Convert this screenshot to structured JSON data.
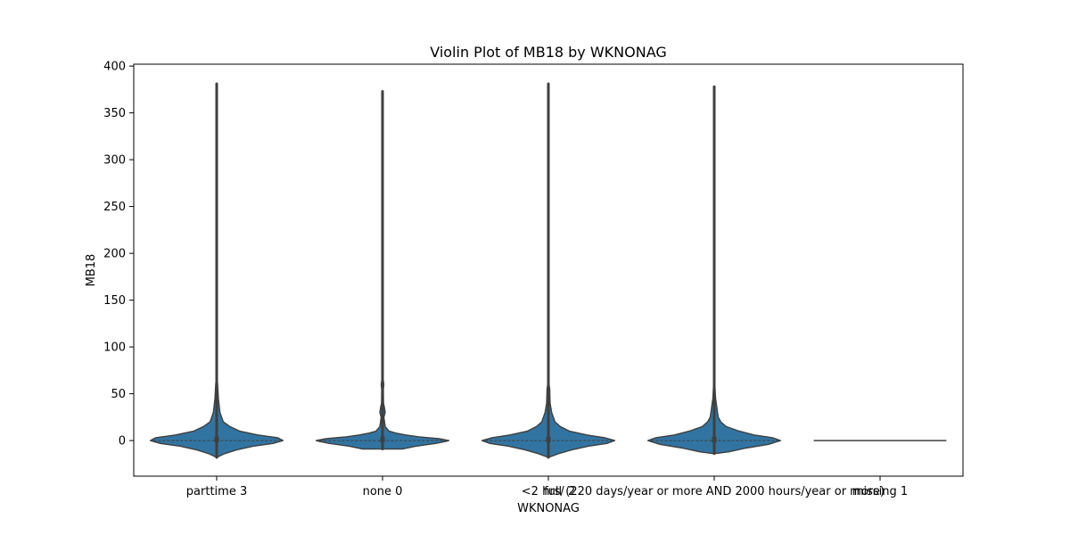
{
  "chart_data": {
    "type": "violin",
    "title": "Violin Plot of MB18 by WKNONAG",
    "xlabel": "WKNONAG",
    "ylabel": "MB18",
    "categories": [
      "parttime 3",
      "none 0",
      "<2 hrs/ 2",
      "full (220 days/year or more AND 2000 hours/year or more)",
      "missing 1"
    ],
    "ylim": [
      -38,
      402
    ],
    "yticks": [
      0,
      50,
      100,
      150,
      200,
      250,
      300,
      350,
      400
    ],
    "grid": false,
    "legend": "none",
    "colors": {
      "fill": "#3274a1",
      "edge": "#3f3f3f",
      "axis": "#000000"
    },
    "violins": [
      {
        "category": "parttime 3",
        "max": 381,
        "min": -18,
        "median": 0,
        "profile": [
          [
            -18,
            0
          ],
          [
            -14,
            0.12
          ],
          [
            -10,
            0.3
          ],
          [
            -6,
            0.55
          ],
          [
            -3,
            0.85
          ],
          [
            0,
            1.0
          ],
          [
            3,
            0.92
          ],
          [
            6,
            0.62
          ],
          [
            10,
            0.35
          ],
          [
            15,
            0.2
          ],
          [
            20,
            0.1
          ],
          [
            30,
            0.05
          ],
          [
            45,
            0.025
          ],
          [
            60,
            0.015
          ],
          [
            70,
            0
          ]
        ]
      },
      {
        "category": "none 0",
        "max": 373,
        "min": -9,
        "median": 0,
        "profile": [
          [
            -9,
            0.3
          ],
          [
            -6,
            0.5
          ],
          [
            -3,
            0.8
          ],
          [
            -1,
            0.95
          ],
          [
            0,
            1.0
          ],
          [
            2,
            0.85
          ],
          [
            4,
            0.55
          ],
          [
            6,
            0.35
          ],
          [
            8,
            0.2
          ],
          [
            10,
            0.1
          ],
          [
            15,
            0.04
          ],
          [
            25,
            0.02
          ],
          [
            30,
            0.04
          ],
          [
            35,
            0.03
          ],
          [
            40,
            0.015
          ],
          [
            55,
            0.012
          ],
          [
            60,
            0.02
          ],
          [
            65,
            0.01
          ],
          [
            90,
            0.005
          ]
        ]
      },
      {
        "category": "<2 hrs/ 2",
        "max": 381,
        "min": -18,
        "median": 0,
        "profile": [
          [
            -18,
            0
          ],
          [
            -14,
            0.15
          ],
          [
            -10,
            0.35
          ],
          [
            -6,
            0.6
          ],
          [
            -3,
            0.88
          ],
          [
            0,
            1.0
          ],
          [
            3,
            0.85
          ],
          [
            6,
            0.58
          ],
          [
            10,
            0.32
          ],
          [
            15,
            0.18
          ],
          [
            20,
            0.1
          ],
          [
            30,
            0.05
          ],
          [
            40,
            0.025
          ],
          [
            55,
            0.02
          ],
          [
            65,
            0
          ]
        ]
      },
      {
        "category": "full (220 days/year or more AND 2000 hours/year or more)",
        "max": 378,
        "min": -14,
        "median": 0,
        "profile": [
          [
            -14,
            0
          ],
          [
            -12,
            0.22
          ],
          [
            -8,
            0.48
          ],
          [
            -4,
            0.82
          ],
          [
            0,
            1.0
          ],
          [
            3,
            0.88
          ],
          [
            6,
            0.6
          ],
          [
            10,
            0.38
          ],
          [
            15,
            0.18
          ],
          [
            20,
            0.1
          ],
          [
            25,
            0.06
          ],
          [
            30,
            0.05
          ],
          [
            35,
            0.04
          ],
          [
            45,
            0.02
          ],
          [
            60,
            0.01
          ],
          [
            65,
            0
          ]
        ]
      },
      {
        "category": "missing 1",
        "max": 0,
        "min": 0,
        "median": 0,
        "profile": []
      }
    ]
  }
}
